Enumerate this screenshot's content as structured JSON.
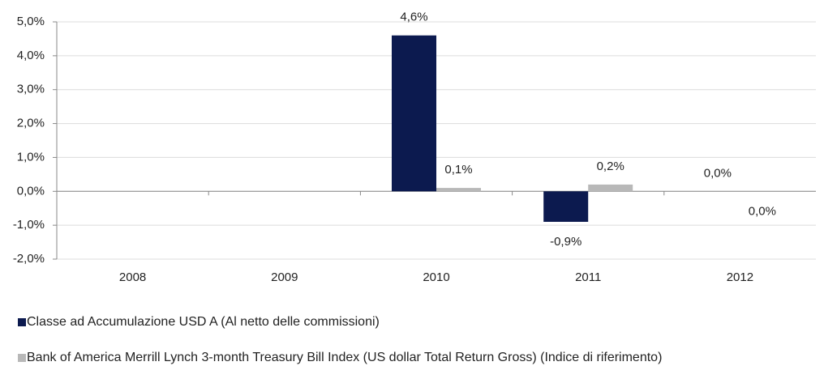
{
  "chart_data": {
    "type": "bar",
    "categories": [
      "2008",
      "2009",
      "2010",
      "2011",
      "2012"
    ],
    "series": [
      {
        "name": "Classe ad Accumulazione USD A (Al netto delle commissioni)",
        "color": "#0c1a4f",
        "values": [
          null,
          null,
          4.6,
          -0.9,
          0.0
        ],
        "value_labels": [
          null,
          null,
          "4,6%",
          "-0,9%",
          "0,0%"
        ]
      },
      {
        "name": "Bank of America Merrill Lynch 3-month Treasury Bill Index (US dollar Total Return Gross) (Indice di riferimento)",
        "color": "#b8b8b8",
        "values": [
          null,
          null,
          0.1,
          0.2,
          0.0
        ],
        "value_labels": [
          null,
          null,
          "0,1%",
          "0,2%",
          "0,0%"
        ]
      }
    ],
    "ylim": [
      -2,
      5
    ],
    "yticks": [
      {
        "value": -2,
        "label": "-2,0%"
      },
      {
        "value": -1,
        "label": "-1,0%"
      },
      {
        "value": 0,
        "label": "0,0%"
      },
      {
        "value": 1,
        "label": "1,0%"
      },
      {
        "value": 2,
        "label": "2,0%"
      },
      {
        "value": 3,
        "label": "3,0%"
      },
      {
        "value": 4,
        "label": "4,0%"
      },
      {
        "value": 5,
        "label": "5,0%"
      }
    ],
    "grid": true
  }
}
